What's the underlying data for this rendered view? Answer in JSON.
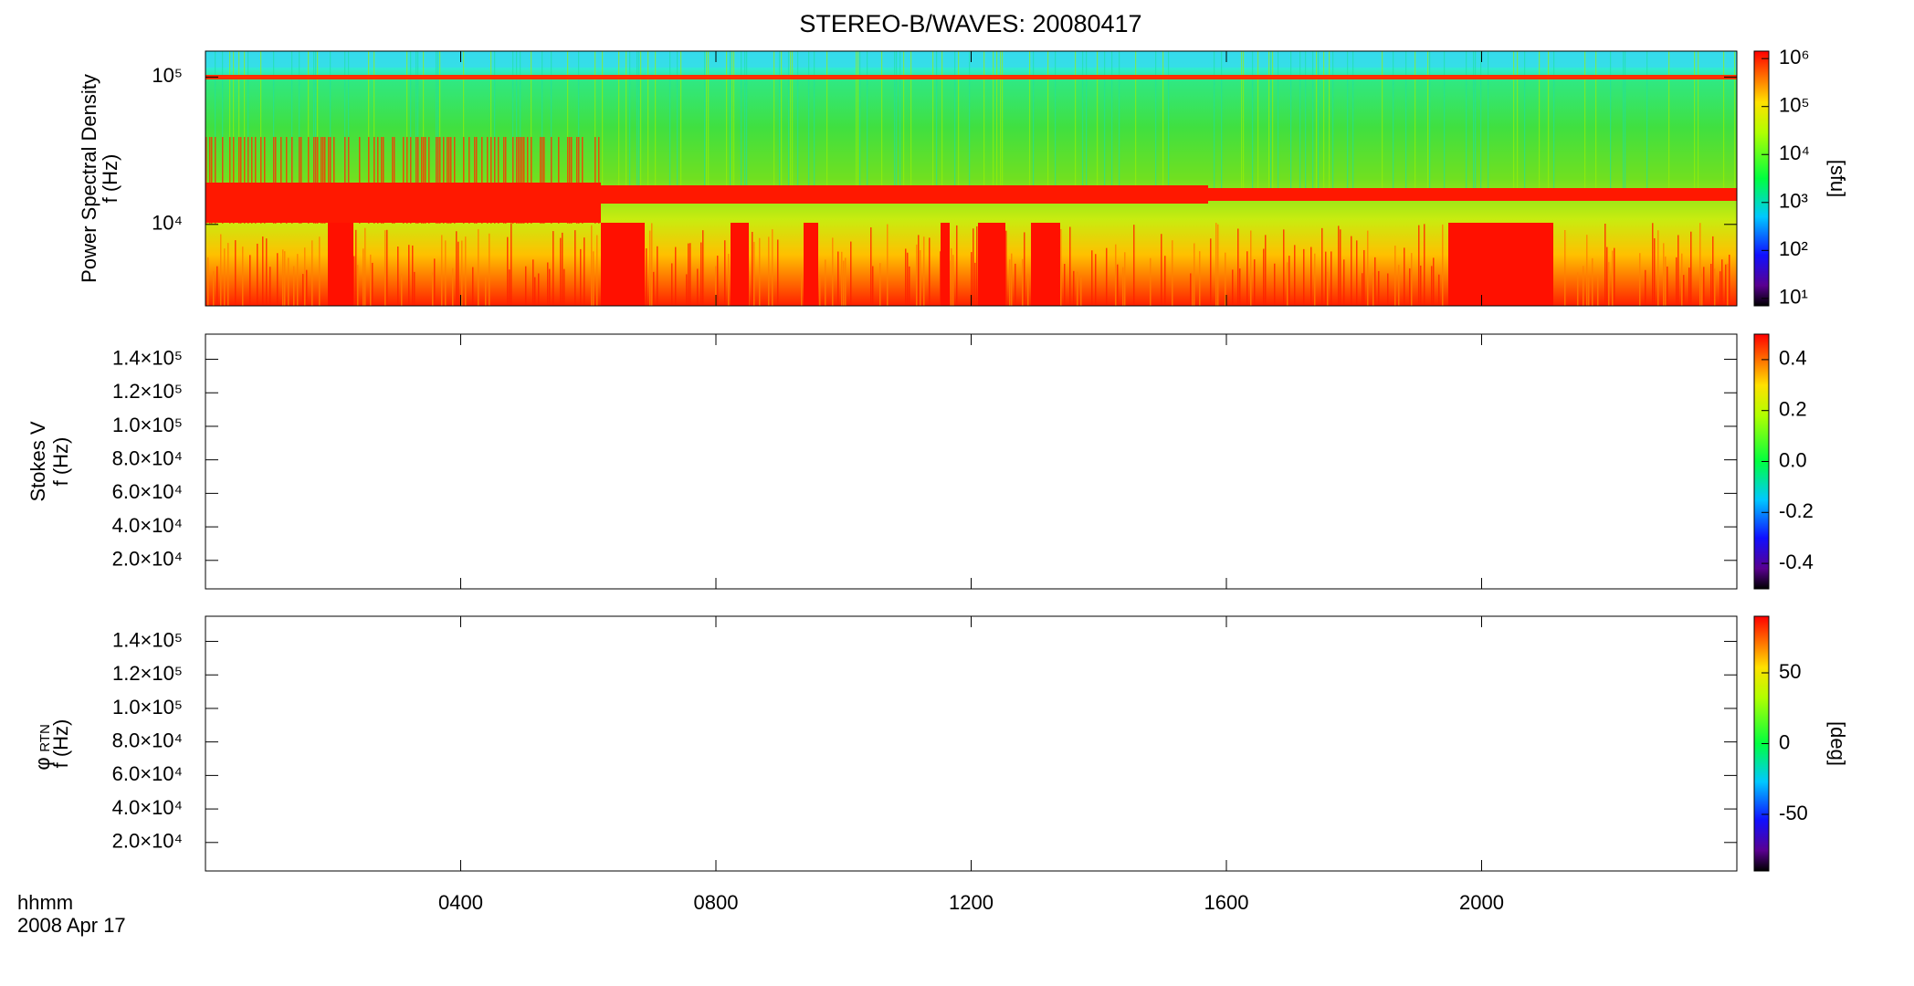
{
  "title": "STEREO-B/WAVES: 20080417",
  "x_axis_label": "hhmm",
  "x_axis_date": "2008 Apr 17",
  "chart_data": [
    {
      "type": "spectrogram",
      "ylabel": [
        "Power Spectral Density",
        "f (Hz)"
      ],
      "yscale": "log",
      "ylim": [
        2800,
        150000
      ],
      "yticks": [
        {
          "value": 10000,
          "label": "10⁴"
        },
        {
          "value": 100000,
          "label": "10⁵"
        }
      ],
      "xlim": [
        0,
        24
      ],
      "xticks": [
        {
          "value": 4,
          "label": "0400"
        },
        {
          "value": 8,
          "label": "0800"
        },
        {
          "value": 12,
          "label": "1200"
        },
        {
          "value": 16,
          "label": "1600"
        },
        {
          "value": 20,
          "label": "2000"
        }
      ],
      "colorbar": {
        "label": "[sfu]",
        "scale": "log",
        "lim": [
          7,
          1430000
        ],
        "ticks": [
          {
            "value": 10,
            "label": "10¹"
          },
          {
            "value": 100,
            "label": "10²"
          },
          {
            "value": 1000,
            "label": "10³"
          },
          {
            "value": 10000,
            "label": "10⁴"
          },
          {
            "value": 100000,
            "label": "10⁵"
          },
          {
            "value": 1000000,
            "label": "10⁶"
          }
        ]
      }
    },
    {
      "type": "spectrogram",
      "ylabel": [
        "Stokes V",
        "f (Hz)"
      ],
      "yscale": "linear",
      "ylim": [
        3000,
        155000
      ],
      "yticks": [
        {
          "value": 20000,
          "label": "2.0×10⁴"
        },
        {
          "value": 40000,
          "label": "4.0×10⁴"
        },
        {
          "value": 60000,
          "label": "6.0×10⁴"
        },
        {
          "value": 80000,
          "label": "8.0×10⁴"
        },
        {
          "value": 100000,
          "label": "1.0×10⁵"
        },
        {
          "value": 120000,
          "label": "1.2×10⁵"
        },
        {
          "value": 140000,
          "label": "1.4×10⁵"
        }
      ],
      "xlim": [
        0,
        24
      ],
      "xticks": [
        {
          "value": 4,
          "label": "0400"
        },
        {
          "value": 8,
          "label": "0800"
        },
        {
          "value": 12,
          "label": "1200"
        },
        {
          "value": 16,
          "label": "1600"
        },
        {
          "value": 20,
          "label": "2000"
        }
      ],
      "colorbar": {
        "scale": "linear",
        "lim": [
          -0.5,
          0.5
        ],
        "ticks": [
          -0.4,
          -0.2,
          {
            "value": 0,
            "label": "0.0"
          },
          0.2,
          0.4
        ]
      }
    },
    {
      "type": "spectrogram",
      "ylabel": [
        "φ",
        "f (Hz)"
      ],
      "ylabel_subscript": "RTN",
      "yscale": "linear",
      "ylim": [
        3000,
        155000
      ],
      "yticks": [
        {
          "value": 20000,
          "label": "2.0×10⁴"
        },
        {
          "value": 40000,
          "label": "4.0×10⁴"
        },
        {
          "value": 60000,
          "label": "6.0×10⁴"
        },
        {
          "value": 80000,
          "label": "8.0×10⁴"
        },
        {
          "value": 100000,
          "label": "1.0×10⁵"
        },
        {
          "value": 120000,
          "label": "1.2×10⁵"
        },
        {
          "value": 140000,
          "label": "1.4×10⁵"
        }
      ],
      "xlim": [
        0,
        24
      ],
      "xticks": [
        {
          "value": 4,
          "label": "0400"
        },
        {
          "value": 8,
          "label": "0800"
        },
        {
          "value": 12,
          "label": "1200"
        },
        {
          "value": 16,
          "label": "1600"
        },
        {
          "value": 20,
          "label": "2000"
        }
      ],
      "colorbar": {
        "label": "[deg]",
        "scale": "linear",
        "lim": [
          -90,
          90
        ],
        "ticks": [
          -50,
          0,
          50
        ]
      }
    }
  ]
}
